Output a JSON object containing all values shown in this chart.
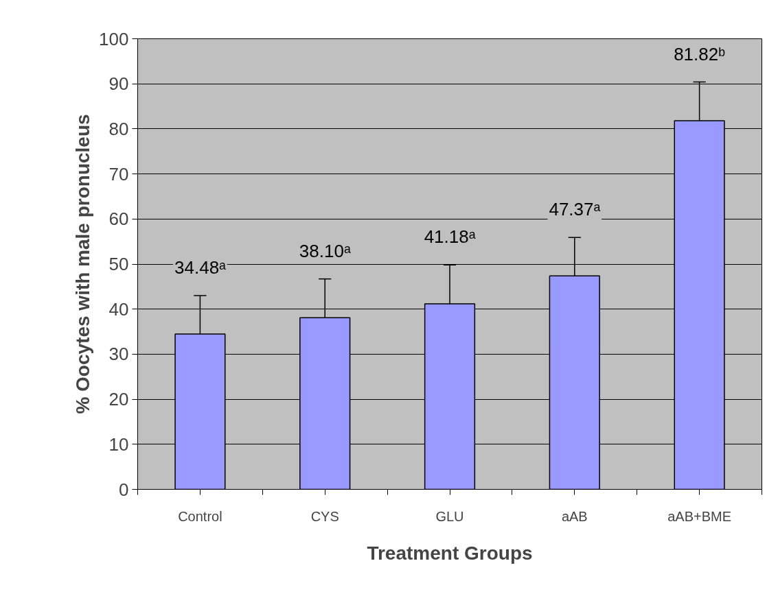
{
  "chart_data": {
    "type": "bar",
    "xlabel": "Treatment Groups",
    "ylabel": "% Oocytes with male pronucleus",
    "categories": [
      "Control",
      "CYS",
      "GLU",
      "aAB",
      "aAB+BME"
    ],
    "values": [
      34.48,
      38.1,
      41.18,
      47.37,
      81.82
    ],
    "errors": [
      [
        34.48,
        43.0
      ],
      [
        38.1,
        46.7
      ],
      [
        41.18,
        49.8
      ],
      [
        47.37,
        55.9
      ],
      [
        81.82,
        90.4
      ]
    ],
    "value_labels": [
      "34.48ᵃ",
      "38.10ᵃ",
      "41.18ᵃ",
      "47.37ᵃ",
      "81.82ᵇ"
    ],
    "color": "#9999ff",
    "ylim": [
      0,
      100
    ],
    "yticks": [
      0,
      10,
      20,
      30,
      40,
      50,
      60,
      70,
      80,
      90,
      100
    ],
    "grid": "y"
  }
}
